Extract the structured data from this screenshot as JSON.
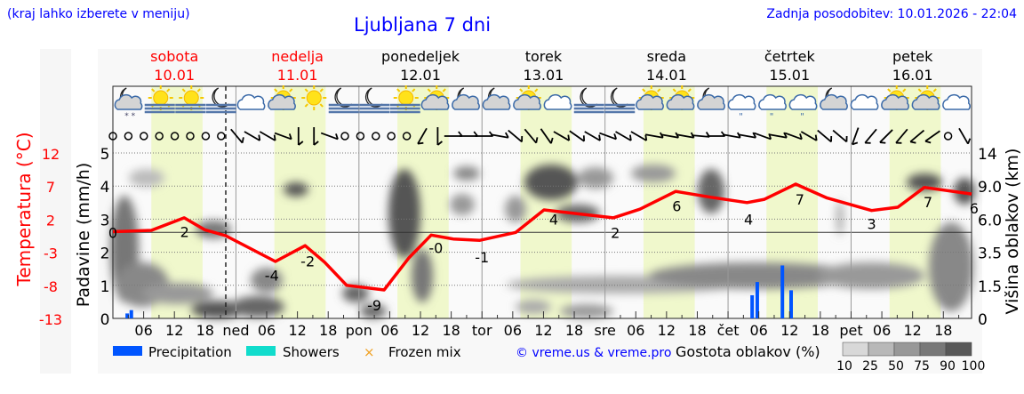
{
  "header": {
    "hint": "(kraj lahko izberete v meniju)",
    "title": "Ljubljana 7 dni",
    "updated": "Zadnja posodobitev: 10.01.2026 - 22:04"
  },
  "days": [
    {
      "name": "sobota",
      "date": "10.01",
      "weekend": true
    },
    {
      "name": "nedelja",
      "date": "11.01",
      "weekend": true
    },
    {
      "name": "ponedeljek",
      "date": "12.01",
      "weekend": false
    },
    {
      "name": "torek",
      "date": "13.01",
      "weekend": false
    },
    {
      "name": "sreda",
      "date": "14.01",
      "weekend": false
    },
    {
      "name": "četrtek",
      "date": "15.01",
      "weekend": false
    },
    {
      "name": "petek",
      "date": "16.01",
      "weekend": false
    }
  ],
  "weather_icons": [
    "moon-cloud-snow",
    "sun-fog",
    "sun-fog",
    "moon-fog",
    "cloudy",
    "sun-cloud",
    "sun",
    "moon-fog",
    "moon-fog",
    "sun-fog",
    "sun-cloud",
    "moon-cloud",
    "moon-cloud",
    "sun-cloud",
    "cloudy",
    "moon-fog",
    "moon-fog",
    "sun-cloud",
    "sun-cloud",
    "moon-cloud",
    "cloud-drizzle",
    "cloud-drizzle",
    "cloud-drizzle",
    "moon-cloud",
    "cloudy",
    "sun-cloud",
    "sun-cloud",
    "cloudy"
  ],
  "wind": [
    "calm",
    "calm",
    "calm",
    "calm",
    "calm",
    "calm",
    "calm",
    "calm",
    -40,
    -60,
    -60,
    -70,
    0,
    0,
    -70,
    "calm",
    "calm",
    "calm",
    "calm",
    "calm",
    30,
    0,
    -90,
    -90,
    -90,
    -80,
    -50,
    -40,
    -35,
    -60,
    -55,
    -60,
    -70,
    -60,
    -60,
    -80,
    -80,
    -80,
    -85,
    -90,
    -80,
    -80,
    -70,
    -80,
    -70,
    -60,
    -50,
    -50,
    20,
    40,
    45,
    40,
    50,
    55,
    "calm",
    -30
  ],
  "chart_data": {
    "type": "line",
    "title": "Ljubljana 7 dni",
    "x_unit": "hours since 10.01 00:00",
    "x_tick_labels": [
      "06",
      "12",
      "18",
      "ned",
      "06",
      "12",
      "18",
      "pon",
      "06",
      "12",
      "18",
      "tor",
      "06",
      "12",
      "18",
      "sre",
      "06",
      "12",
      "18",
      "čet",
      "06",
      "12",
      "18",
      "pet",
      "06",
      "12",
      "18"
    ],
    "temperature": {
      "label": "Temperatura (°C)",
      "ylim": [
        -13,
        12
      ],
      "ticks": [
        "12",
        "7",
        "2",
        "-3",
        "-8",
        "-13"
      ],
      "x": [
        0,
        7.5,
        13.9,
        17.9,
        22,
        31.7,
        37.5,
        41.3,
        45.6,
        52.9,
        57.8,
        62.1,
        66.4,
        71.6,
        78.6,
        84.1,
        90.7,
        97.6,
        102.8,
        109.8,
        116.7,
        123.7,
        127.1,
        133.2,
        139.3,
        148,
        153.1,
        158.3,
        167.5
      ],
      "y": [
        0.1,
        0.3,
        2.2,
        0.4,
        -0.5,
        -4.4,
        -2,
        -4.5,
        -8,
        -8.7,
        -3.8,
        -0.4,
        -1,
        -1.2,
        0,
        3.4,
        2.8,
        2.2,
        3.5,
        6.2,
        5.3,
        4.5,
        5,
        7.3,
        5.2,
        3.3,
        3.8,
        6.8,
        5.8
      ],
      "labels": [
        {
          "h": 0,
          "t": 0,
          "text": "0"
        },
        {
          "h": 14,
          "t": 0.1,
          "text": "2"
        },
        {
          "h": 31,
          "t": -6.5,
          "text": "-4"
        },
        {
          "h": 38,
          "t": -4.3,
          "text": "-2"
        },
        {
          "h": 51,
          "t": -11,
          "text": "-9"
        },
        {
          "h": 63,
          "t": -2.3,
          "text": "-0"
        },
        {
          "h": 72,
          "t": -3.7,
          "text": "-1"
        },
        {
          "h": 86,
          "t": 2,
          "text": "4"
        },
        {
          "h": 98,
          "t": 0,
          "text": "2"
        },
        {
          "h": 110,
          "t": 4,
          "text": "6"
        },
        {
          "h": 124,
          "t": 2,
          "text": "4"
        },
        {
          "h": 134,
          "t": 5,
          "text": "7"
        },
        {
          "h": 148,
          "t": 1.3,
          "text": "3"
        },
        {
          "h": 159,
          "t": 4.6,
          "text": "7"
        },
        {
          "h": 168,
          "t": 3.7,
          "text": "6"
        }
      ]
    },
    "precipitation": {
      "label": "Padavine (mm/h)",
      "ylim": [
        0,
        5
      ],
      "ticks": [
        "0",
        "1",
        "2",
        "3",
        "4",
        "5"
      ],
      "x": [
        2.8,
        3.6,
        124.7,
        125.7,
        130.6,
        132.3
      ],
      "y": [
        0.15,
        0.25,
        0.7,
        1.1,
        1.6,
        0.85
      ]
    },
    "cloud_height": {
      "label": "Višina oblakov (km)",
      "ticks": [
        "0",
        "1.5",
        "3.5",
        "6.0",
        "9.0",
        "14"
      ]
    }
  },
  "legend": {
    "precipitation": "Precipitation",
    "showers": "Showers",
    "frozen": "Frozen mix",
    "copyright": "© vreme.us & vreme.pro",
    "density_title": "Gostota oblakov (%)",
    "density_ticks": [
      "10",
      "25",
      "50",
      "75",
      "90",
      "100"
    ]
  },
  "colors": {
    "temp": "#ff0000",
    "precip": "#0055ff",
    "showers": "#11dccc",
    "frozen": "#f0a020",
    "title": "#0000ff",
    "weekday_band": "#f0f8cc"
  }
}
